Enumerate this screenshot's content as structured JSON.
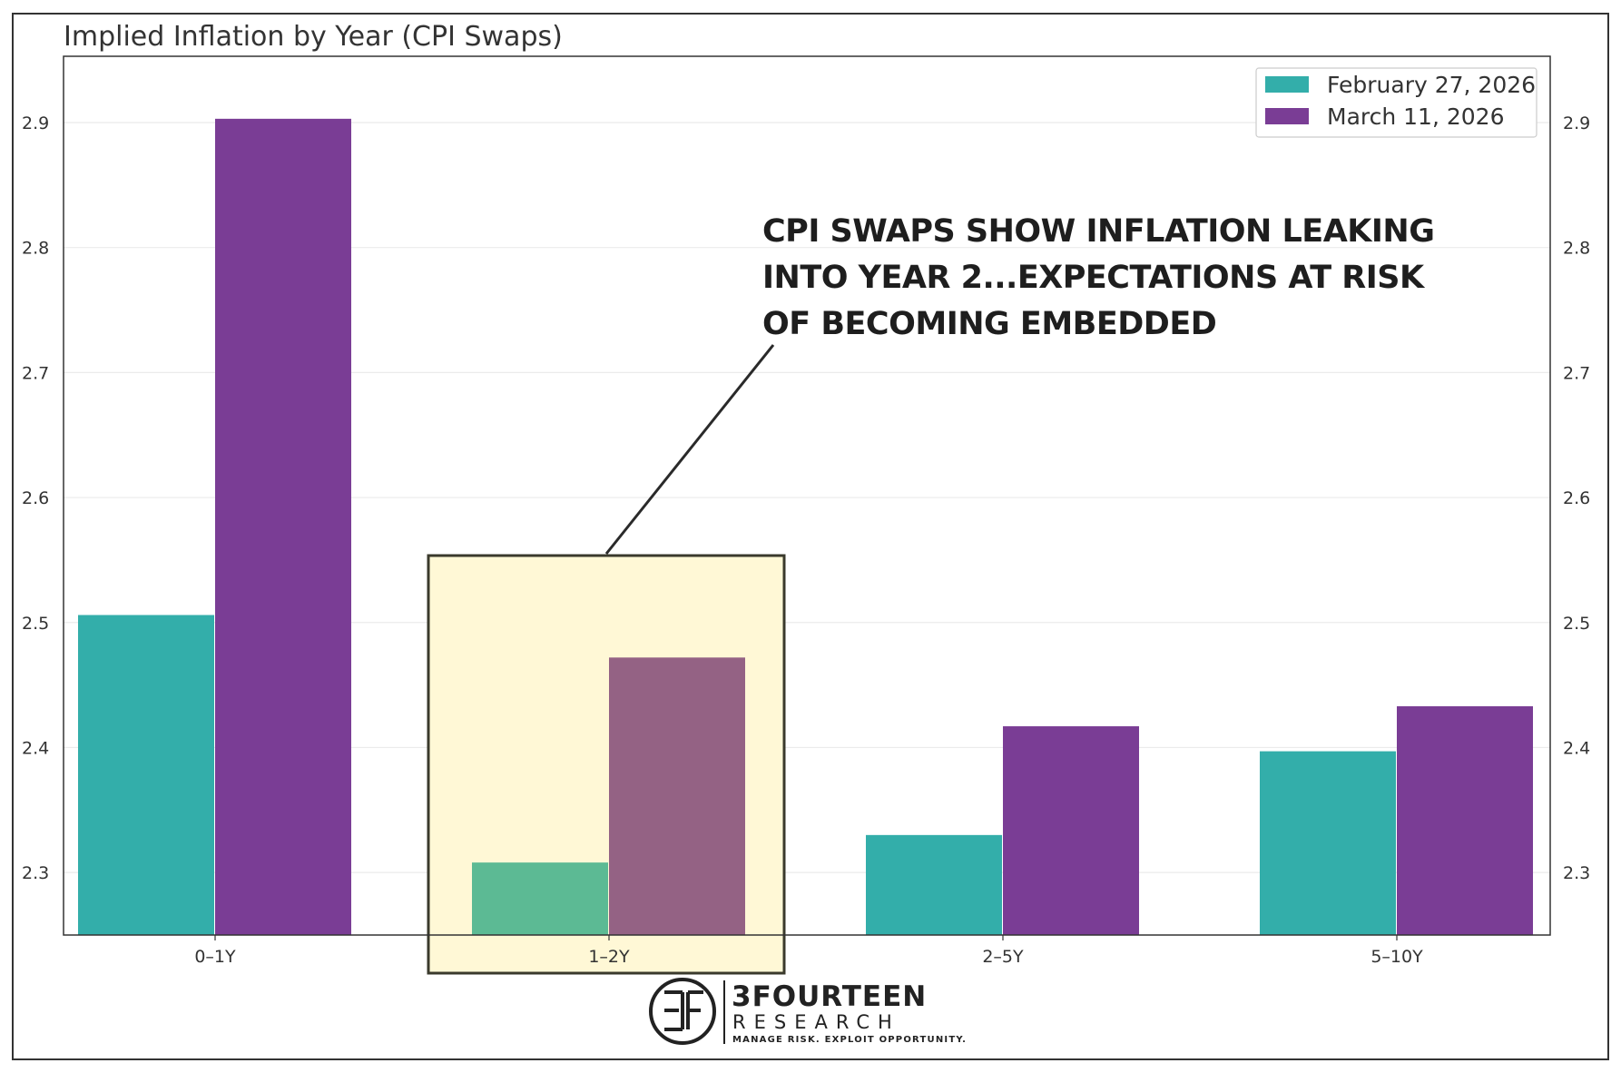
{
  "chart_data": {
    "type": "bar",
    "title": "Implied Inflation by Year (CPI Swaps)",
    "categories": [
      "0–1Y",
      "1–2Y",
      "2–5Y",
      "5–10Y"
    ],
    "series": [
      {
        "name": "February 27, 2026",
        "values": [
          2.506,
          2.308,
          2.33,
          2.397
        ],
        "color": "#33aeaa"
      },
      {
        "name": "March 11, 2026",
        "values": [
          2.903,
          2.472,
          2.417,
          2.433
        ],
        "color": "#7a3d95"
      }
    ],
    "ylim": [
      2.25,
      2.953
    ],
    "yticks": [
      2.3,
      2.4,
      2.5,
      2.6,
      2.7,
      2.8,
      2.9
    ],
    "ytick_labels": [
      "2.3",
      "2.4",
      "2.5",
      "2.6",
      "2.7",
      "2.8",
      "2.9"
    ],
    "y_axis_both_sides": true,
    "grid": true,
    "legend_position": "top-right",
    "highlight": {
      "category": "1–2Y",
      "fill_color": "#fff8d6",
      "highlighted_colors": [
        "#5cba94",
        "#946284"
      ]
    },
    "annotation": {
      "lines": [
        "CPI SWAPS SHOW INFLATION LEAKING",
        "INTO YEAR 2...EXPECTATIONS AT RISK",
        "OF BECOMING EMBEDDED"
      ],
      "points_to": "1–2Y"
    }
  },
  "branding": {
    "logo_name": "3FOURTEEN",
    "logo_sub": "RESEARCH",
    "tagline": "MANAGE RISK. EXPLOIT OPPORTUNITY.",
    "icon": "3f-monogram-icon"
  }
}
